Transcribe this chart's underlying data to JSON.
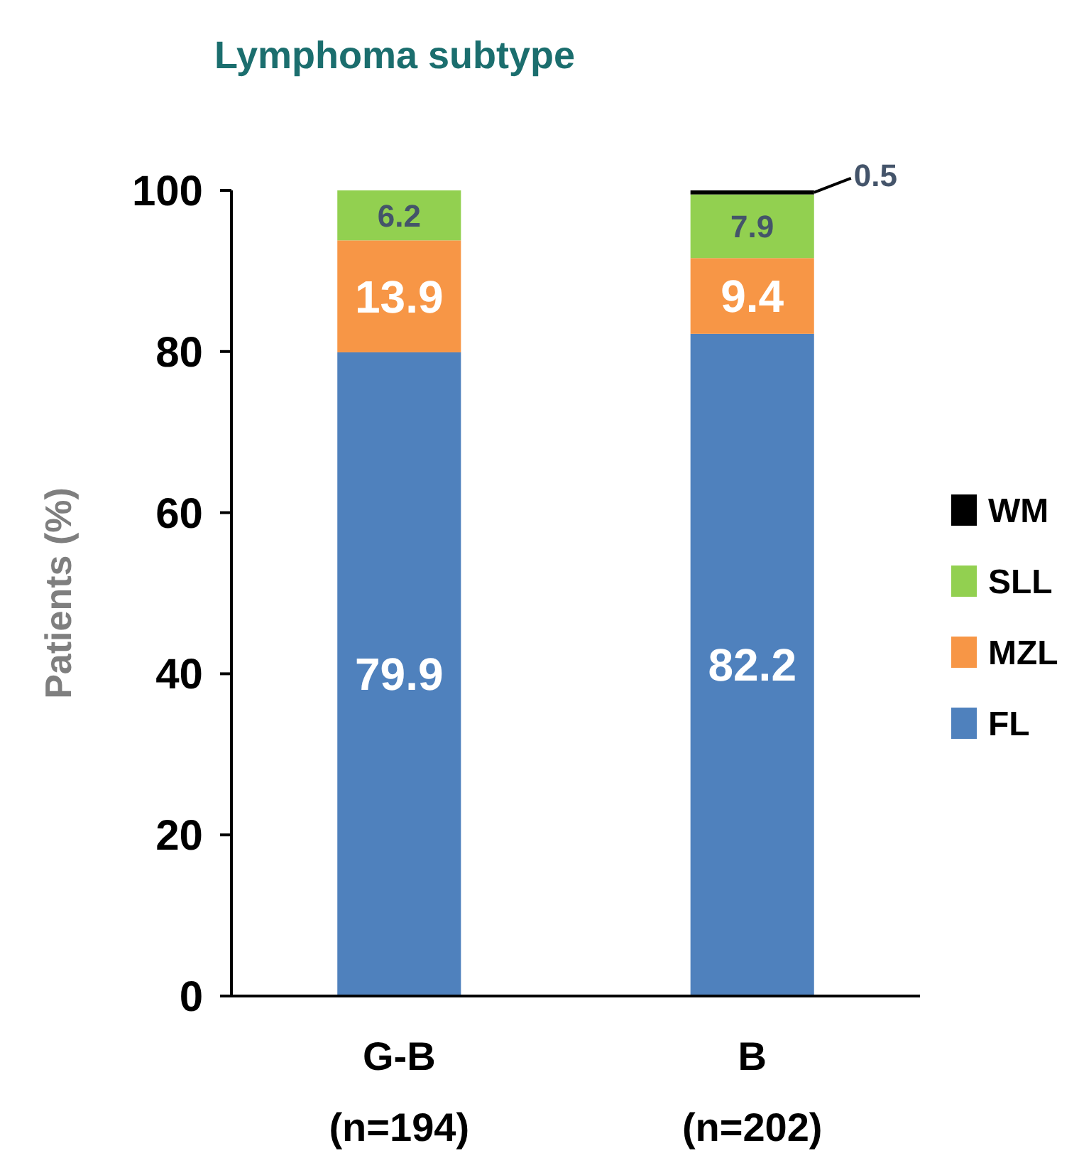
{
  "chart_data": {
    "type": "bar",
    "stacked": true,
    "title": "Lymphoma subtype",
    "ylabel": "Patients (%)",
    "categories": [
      "G-B\n(n=194)",
      "B\n(n=202)"
    ],
    "ylim": [
      0,
      100
    ],
    "yticks": [
      0,
      20,
      40,
      60,
      80,
      100
    ],
    "grid": false,
    "legend": "right",
    "series": [
      {
        "name": "FL",
        "color": "#4f81bd",
        "values": [
          79.9,
          82.2
        ],
        "value_labels": [
          "79.9",
          "82.2"
        ]
      },
      {
        "name": "MZL",
        "color": "#f79646",
        "values": [
          13.9,
          9.4
        ],
        "value_labels": [
          "13.9",
          "9.4"
        ]
      },
      {
        "name": "SLL",
        "color": "#92d050",
        "values": [
          6.2,
          7.9
        ],
        "value_labels": [
          "6.2",
          "7.9"
        ]
      },
      {
        "name": "WM",
        "color": "#000000",
        "values": [
          null,
          0.5
        ],
        "value_labels": [
          null,
          "0.5"
        ]
      }
    ]
  }
}
